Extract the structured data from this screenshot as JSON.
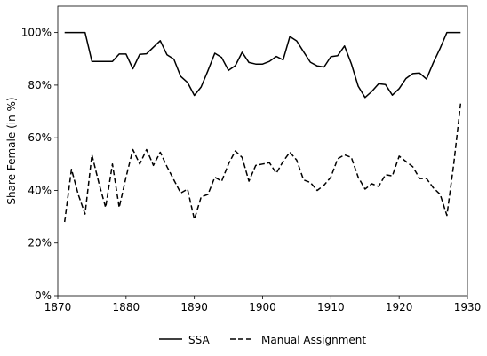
{
  "chart_data": {
    "type": "line",
    "title": "",
    "xlabel": "",
    "ylabel": "Share Female (in %)",
    "xlim": [
      1870,
      1930
    ],
    "ylim": [
      0,
      110
    ],
    "x_ticks": [
      1870,
      1880,
      1890,
      1900,
      1910,
      1920,
      1930
    ],
    "y_ticks": [
      0,
      20,
      40,
      60,
      80,
      100
    ],
    "y_tick_suffix": "%",
    "grid": false,
    "legend": "bottom-center",
    "series": [
      {
        "name": "SSA",
        "style": "solid",
        "color": "#000000",
        "x": [
          1871,
          1872,
          1873,
          1874,
          1875,
          1876,
          1877,
          1878,
          1879,
          1880,
          1881,
          1882,
          1883,
          1884,
          1885,
          1886,
          1887,
          1888,
          1889,
          1890,
          1891,
          1892,
          1893,
          1894,
          1895,
          1896,
          1897,
          1898,
          1899,
          1900,
          1901,
          1902,
          1903,
          1904,
          1905,
          1906,
          1907,
          1908,
          1909,
          1910,
          1911,
          1912,
          1913,
          1914,
          1915,
          1916,
          1917,
          1918,
          1919,
          1920,
          1921,
          1922,
          1923,
          1924,
          1925,
          1926,
          1927,
          1928,
          1929
        ],
        "y": [
          100,
          100,
          100,
          100,
          89,
          89,
          89,
          89,
          91.8,
          91.8,
          86.2,
          91.7,
          91.9,
          94.4,
          96.9,
          91.5,
          89.9,
          83.3,
          81,
          76.1,
          79.3,
          85.5,
          92.1,
          90.5,
          85.6,
          87.4,
          92.5,
          88.6,
          88,
          88,
          89,
          90.9,
          89.6,
          98.5,
          96.8,
          92.7,
          88.7,
          87.3,
          86.9,
          90.8,
          91.2,
          94.9,
          88.1,
          79.6,
          75.3,
          77.6,
          80.5,
          80.2,
          76.2,
          78.7,
          82.5,
          84.4,
          84.6,
          82.3,
          88.5,
          94,
          100,
          100,
          100
        ]
      },
      {
        "name": "Manual Assignment",
        "style": "dashed",
        "color": "#000000",
        "x": [
          1871,
          1872,
          1873,
          1874,
          1875,
          1876,
          1877,
          1878,
          1879,
          1880,
          1881,
          1882,
          1883,
          1884,
          1885,
          1886,
          1887,
          1888,
          1889,
          1890,
          1891,
          1892,
          1893,
          1894,
          1895,
          1896,
          1897,
          1898,
          1899,
          1900,
          1901,
          1902,
          1903,
          1904,
          1905,
          1906,
          1907,
          1908,
          1909,
          1910,
          1911,
          1912,
          1913,
          1914,
          1915,
          1916,
          1917,
          1918,
          1919,
          1920,
          1921,
          1922,
          1923,
          1924,
          1925,
          1926,
          1927,
          1928,
          1929
        ],
        "y": [
          28,
          48,
          38.5,
          31,
          53.5,
          43,
          33.5,
          50,
          33.5,
          45,
          55.5,
          50,
          55.5,
          49.5,
          54.5,
          49,
          44,
          39,
          40.5,
          29,
          37.5,
          38.5,
          45,
          43.5,
          50,
          55,
          52.5,
          43.5,
          49.5,
          50,
          50.5,
          46.5,
          51,
          54.5,
          51.5,
          44,
          43,
          40,
          42,
          45,
          52,
          53.5,
          52.5,
          45,
          40.5,
          42.5,
          41.5,
          46,
          45.5,
          53,
          51,
          49,
          44.5,
          44.5,
          41,
          38.5,
          30.5,
          50,
          73
        ]
      }
    ]
  }
}
